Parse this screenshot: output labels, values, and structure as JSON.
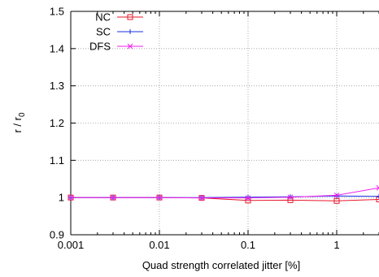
{
  "chart_data": {
    "type": "line",
    "title": "",
    "xlabel": "Quad strength correlated jitter [%]",
    "ylabel_main": "r / r",
    "ylabel_sub": "0",
    "x_scale": "log",
    "xlim": [
      0.001,
      3
    ],
    "ylim": [
      0.9,
      1.5
    ],
    "grid": true,
    "legend_position": "top-left",
    "x_ticks": [
      {
        "value": 0.001,
        "label": "0.001"
      },
      {
        "value": 0.01,
        "label": "0.01"
      },
      {
        "value": 0.1,
        "label": "0.1"
      },
      {
        "value": 1,
        "label": "1"
      }
    ],
    "y_ticks": [
      {
        "value": 0.9,
        "label": "0.9"
      },
      {
        "value": 1.0,
        "label": "1"
      },
      {
        "value": 1.1,
        "label": "1.1"
      },
      {
        "value": 1.2,
        "label": "1.2"
      },
      {
        "value": 1.3,
        "label": "1.3"
      },
      {
        "value": 1.4,
        "label": "1.4"
      },
      {
        "value": 1.5,
        "label": "1.5"
      }
    ],
    "x": [
      0.001,
      0.003,
      0.01,
      0.03,
      0.1,
      0.3,
      1,
      3
    ],
    "series": [
      {
        "name": "NC",
        "color": "#e8172a",
        "marker": "square",
        "values": [
          1.0,
          1.0,
          1.0,
          0.999,
          0.992,
          0.993,
          0.991,
          0.995
        ]
      },
      {
        "name": "SC",
        "color": "#1a2fe0",
        "marker": "plus",
        "values": [
          1.0,
          1.0,
          1.0,
          1.0,
          1.001,
          1.002,
          1.004,
          1.003
        ]
      },
      {
        "name": "DFS",
        "color": "#ee22ee",
        "marker": "cross",
        "values": [
          1.0,
          1.0,
          1.0,
          0.999,
          0.999,
          1.001,
          1.006,
          1.026
        ]
      }
    ]
  }
}
